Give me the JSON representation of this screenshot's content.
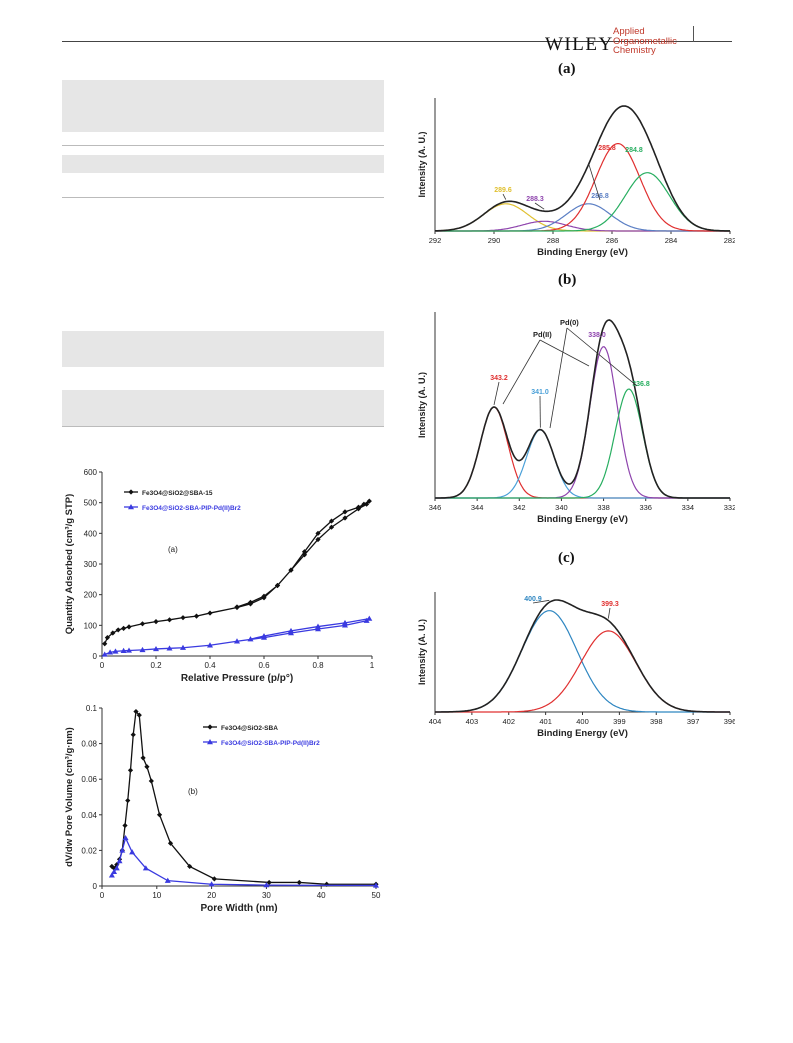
{
  "header": {
    "publisher": "WILEY",
    "journal_line1": "Applied",
    "journal_line2": "Organometallic",
    "journal_line3": "Chemistry"
  },
  "figure_left": {
    "panel_a": {
      "label": "(a)",
      "legend": [
        "Fe3O4@SiO2@SBA-15",
        "Fe3O4@SiO2-SBA-PIP-Pd(II)Br2"
      ]
    },
    "panel_b": {
      "label": "(b)",
      "legend": [
        "Fe3O4@SiO2-SBA",
        "Fe3O4@SiO2-SBA-PIP-Pd(II)Br2"
      ]
    }
  },
  "figure_right": {
    "labels": [
      "(a)",
      "(b)",
      "(c)"
    ],
    "annotations_b": [
      "Pd(II)",
      "Pd(0)"
    ]
  },
  "chart_data": [
    {
      "type": "line",
      "title": "",
      "xlabel": "Relative Pressure (p/p°)",
      "ylabel": "Quantity Adsorbed (cm³/g STP)",
      "xlim": [
        0,
        1
      ],
      "ylim": [
        0,
        600
      ],
      "xticks": [
        "0",
        "0.2",
        "0.4",
        "0.6",
        "0.8",
        "1"
      ],
      "yticks": [
        "0",
        "100",
        "200",
        "300",
        "400",
        "500",
        "600"
      ],
      "annotation": "(a)",
      "series": [
        {
          "name": "Fe3O4@SiO2@SBA-15",
          "color": "#111111",
          "marker": "diamond",
          "x": [
            0.01,
            0.02,
            0.04,
            0.06,
            0.08,
            0.1,
            0.15,
            0.2,
            0.25,
            0.3,
            0.35,
            0.4,
            0.5,
            0.55,
            0.6,
            0.65,
            0.7,
            0.75,
            0.8,
            0.85,
            0.9,
            0.95,
            0.98,
            0.99,
            0.97,
            0.95,
            0.9,
            0.85,
            0.8,
            0.75,
            0.7,
            0.65,
            0.6,
            0.55,
            0.5
          ],
          "y": [
            40,
            60,
            75,
            85,
            90,
            95,
            105,
            112,
            118,
            125,
            130,
            140,
            158,
            170,
            190,
            230,
            280,
            330,
            380,
            420,
            450,
            480,
            495,
            505,
            495,
            485,
            470,
            440,
            400,
            340,
            280,
            230,
            195,
            175,
            160
          ]
        },
        {
          "name": "Fe3O4@SiO2-SBA-PIP-Pd(II)Br2",
          "color": "#3a3ae0",
          "marker": "triangle",
          "x": [
            0.01,
            0.03,
            0.05,
            0.08,
            0.1,
            0.15,
            0.2,
            0.25,
            0.3,
            0.4,
            0.5,
            0.6,
            0.7,
            0.8,
            0.9,
            0.98,
            0.99,
            0.9,
            0.8,
            0.7,
            0.6,
            0.55
          ],
          "y": [
            5,
            12,
            15,
            17,
            18,
            20,
            23,
            25,
            27,
            35,
            48,
            60,
            75,
            88,
            100,
            115,
            122,
            108,
            96,
            82,
            65,
            55
          ]
        }
      ]
    },
    {
      "type": "line",
      "title": "",
      "xlabel": "Pore Width (nm)",
      "ylabel": "dV/dw Pore Volume (cm³/g·nm)",
      "xlim": [
        0,
        50
      ],
      "ylim": [
        0,
        0.1
      ],
      "xticks": [
        "0",
        "10",
        "20",
        "30",
        "40",
        "50"
      ],
      "yticks": [
        "0",
        "0.02",
        "0.04",
        "0.06",
        "0.08",
        "0.1"
      ],
      "annotation": "(b)",
      "series": [
        {
          "name": "Fe3O4@SiO2-SBA",
          "color": "#111111",
          "marker": "diamond",
          "x": [
            1.8,
            2.2,
            2.7,
            3.2,
            3.7,
            4.2,
            4.7,
            5.2,
            5.7,
            6.2,
            6.8,
            7.5,
            8.2,
            9.0,
            10.5,
            12.5,
            16,
            20.5,
            30.5,
            36,
            41,
            50
          ],
          "y": [
            0.011,
            0.01,
            0.012,
            0.015,
            0.02,
            0.034,
            0.048,
            0.065,
            0.085,
            0.098,
            0.096,
            0.072,
            0.067,
            0.059,
            0.04,
            0.024,
            0.011,
            0.004,
            0.002,
            0.002,
            0.001,
            0.001
          ]
        },
        {
          "name": "Fe3O4@SiO2-SBA-PIP-Pd(II)Br2",
          "color": "#3a3ae0",
          "marker": "triangle",
          "x": [
            1.8,
            2.2,
            2.7,
            3.2,
            3.7,
            4.3,
            5.5,
            8,
            12,
            20,
            30,
            50
          ],
          "y": [
            0.006,
            0.008,
            0.01,
            0.014,
            0.02,
            0.027,
            0.019,
            0.01,
            0.003,
            0.001,
            0.0005,
            0.0003
          ]
        }
      ]
    },
    {
      "type": "line",
      "title": "",
      "xlabel": "Binding Energy (eV)",
      "ylabel": "Intensity (A. U.)",
      "xlim": [
        292,
        282
      ],
      "xticks": [
        "292",
        "290",
        "288",
        "286",
        "284",
        "282"
      ],
      "peaks": [
        {
          "center": 289.6,
          "label": "289.6",
          "height": 0.28,
          "color": "#e0c030"
        },
        {
          "center": 288.3,
          "label": "288.3",
          "height": 0.1,
          "color": "#8e44ad"
        },
        {
          "center": 286.8,
          "label": "286.8",
          "height": 0.28,
          "color": "#5b7fc4"
        },
        {
          "center": 285.8,
          "label": "285.8",
          "height": 0.9,
          "color": "#e03030"
        },
        {
          "center": 284.8,
          "label": "284.8",
          "height": 0.6,
          "color": "#27ae60"
        }
      ]
    },
    {
      "type": "line",
      "title": "",
      "xlabel": "Binding Energy (eV)",
      "ylabel": "Intensity (A. U.)",
      "xlim": [
        346,
        332
      ],
      "xticks": [
        "346",
        "344",
        "342",
        "340",
        "338",
        "336",
        "334",
        "332"
      ],
      "peaks": [
        {
          "center": 343.2,
          "label": "343.2",
          "height": 0.6,
          "color": "#e03030"
        },
        {
          "center": 341.0,
          "label": "341.0",
          "height": 0.45,
          "color": "#4aa0d8"
        },
        {
          "center": 338.0,
          "label": "338.0",
          "height": 1.0,
          "color": "#8e44ad"
        },
        {
          "center": 336.8,
          "label": "336.8",
          "height": 0.72,
          "color": "#27ae60"
        }
      ]
    },
    {
      "type": "line",
      "title": "",
      "xlabel": "Binding Energy (eV)",
      "ylabel": "Intensity (A. U.)",
      "xlim": [
        404,
        396
      ],
      "xticks": [
        "404",
        "403",
        "402",
        "401",
        "400",
        "399",
        "398",
        "397",
        "396"
      ],
      "peaks": [
        {
          "center": 400.9,
          "label": "400.9",
          "height": 0.9,
          "color": "#2e86c1"
        },
        {
          "center": 399.3,
          "label": "399.3",
          "height": 0.72,
          "color": "#e03030"
        }
      ]
    }
  ]
}
